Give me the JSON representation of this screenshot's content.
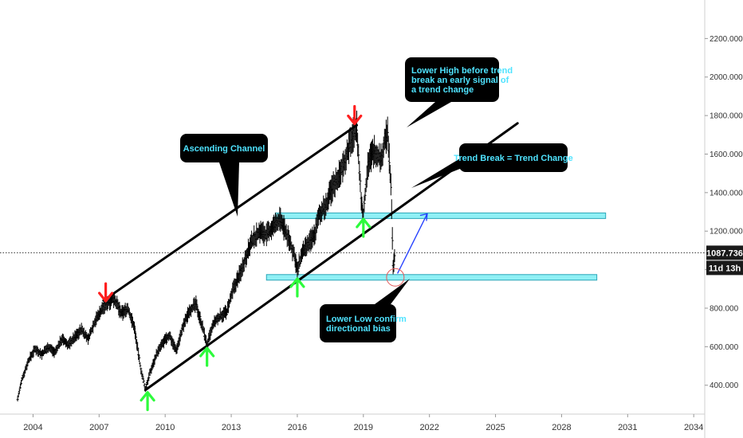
{
  "chart_data": {
    "type": "candlestick-line",
    "x_axis": {
      "ticks": [
        "2004",
        "2007",
        "2010",
        "2013",
        "2016",
        "2019",
        "2022",
        "2025",
        "2028",
        "2031",
        "2034"
      ],
      "range": [
        2002.5,
        2034.5
      ]
    },
    "y_axis": {
      "ticks": [
        "400.000",
        "600.000",
        "800.000",
        "1000.000",
        "1200.000",
        "1400.000",
        "1600.000",
        "1800.000",
        "2000.000",
        "2200.000"
      ],
      "range": [
        250,
        2400
      ]
    },
    "price_label": "1087.736",
    "time_label": "11d 13h",
    "price_level": 1087.736,
    "series": [
      {
        "values": [
          [
            2003.3,
            330
          ],
          [
            2003.5,
            430
          ],
          [
            2003.8,
            530
          ],
          [
            2004.1,
            590
          ],
          [
            2004.4,
            560
          ],
          [
            2004.7,
            600
          ],
          [
            2005.0,
            570
          ],
          [
            2005.3,
            640
          ],
          [
            2005.6,
            610
          ],
          [
            2005.9,
            650
          ],
          [
            2006.2,
            690
          ],
          [
            2006.5,
            640
          ],
          [
            2006.8,
            730
          ],
          [
            2007.1,
            790
          ],
          [
            2007.4,
            830
          ],
          [
            2007.7,
            850
          ],
          [
            2008.0,
            770
          ],
          [
            2008.3,
            800
          ],
          [
            2008.6,
            700
          ],
          [
            2008.9,
            480
          ],
          [
            2009.1,
            380
          ],
          [
            2009.3,
            460
          ],
          [
            2009.6,
            560
          ],
          [
            2009.9,
            620
          ],
          [
            2010.2,
            660
          ],
          [
            2010.5,
            580
          ],
          [
            2010.8,
            700
          ],
          [
            2011.1,
            790
          ],
          [
            2011.4,
            820
          ],
          [
            2011.7,
            700
          ],
          [
            2011.9,
            610
          ],
          [
            2012.2,
            720
          ],
          [
            2012.5,
            760
          ],
          [
            2012.8,
            780
          ],
          [
            2013.1,
            900
          ],
          [
            2013.4,
            980
          ],
          [
            2013.7,
            1080
          ],
          [
            2014.0,
            1160
          ],
          [
            2014.3,
            1200
          ],
          [
            2014.6,
            1180
          ],
          [
            2014.9,
            1220
          ],
          [
            2015.2,
            1260
          ],
          [
            2015.5,
            1190
          ],
          [
            2015.7,
            1130
          ],
          [
            2015.9,
            1060
          ],
          [
            2016.0,
            990
          ],
          [
            2016.2,
            1080
          ],
          [
            2016.5,
            1130
          ],
          [
            2016.8,
            1190
          ],
          [
            2017.0,
            1290
          ],
          [
            2017.3,
            1330
          ],
          [
            2017.6,
            1430
          ],
          [
            2017.9,
            1490
          ],
          [
            2018.1,
            1550
          ],
          [
            2018.3,
            1620
          ],
          [
            2018.5,
            1690
          ],
          [
            2018.7,
            1740
          ],
          [
            2018.9,
            1360
          ],
          [
            2019.0,
            1280
          ],
          [
            2019.2,
            1550
          ],
          [
            2019.5,
            1620
          ],
          [
            2019.8,
            1570
          ],
          [
            2020.0,
            1680
          ],
          [
            2020.1,
            1700
          ],
          [
            2020.25,
            1450
          ],
          [
            2020.35,
            1010
          ],
          [
            2020.45,
            1087.736
          ]
        ]
      }
    ],
    "lines": {
      "channel_upper": [
        [
          2007.2,
          840
        ],
        [
          2018.7,
          1750
        ]
      ],
      "channel_lower": [
        [
          2009.1,
          375
        ],
        [
          2026.0,
          1760
        ]
      ],
      "channel_mid": [
        [
          2008.0,
          1600
        ],
        [
          2009.2,
          1460
        ]
      ]
    },
    "zones": [
      {
        "y": 1280,
        "x": [
          2015.0,
          2030.0
        ]
      },
      {
        "y": 960,
        "x": [
          2014.6,
          2029.6
        ]
      }
    ],
    "arrows_down": [
      [
        2007.3,
        870
      ],
      [
        2018.6,
        1790
      ]
    ],
    "arrows_up": [
      [
        2009.2,
        330
      ],
      [
        2011.9,
        560
      ],
      [
        2016.0,
        920
      ],
      [
        2019.0,
        1230
      ]
    ],
    "annotations": [
      {
        "id": "ascending",
        "text": [
          "Ascending Channel"
        ]
      },
      {
        "id": "lower-high",
        "text": [
          "Lower High before trend",
          "break an early signal of",
          "a trend change"
        ]
      },
      {
        "id": "trend-break",
        "text": [
          "Trend Break = Trend Change"
        ]
      },
      {
        "id": "lower-low",
        "text": [
          "Lower Low confirm",
          "directional bias"
        ]
      }
    ],
    "colors": {
      "candles": "#000000",
      "zone_fill": "#8ff0f5",
      "zone_stroke": "#2aa6b8",
      "arrow_down": "#ff1e1e",
      "arrow_up": "#2dfb3c",
      "projection": "#1f3bff",
      "circle": "#e35a5a",
      "note_text": "#4fe3ff",
      "note_bg": "#000000",
      "badge_bg": "#1a1a1a"
    }
  }
}
